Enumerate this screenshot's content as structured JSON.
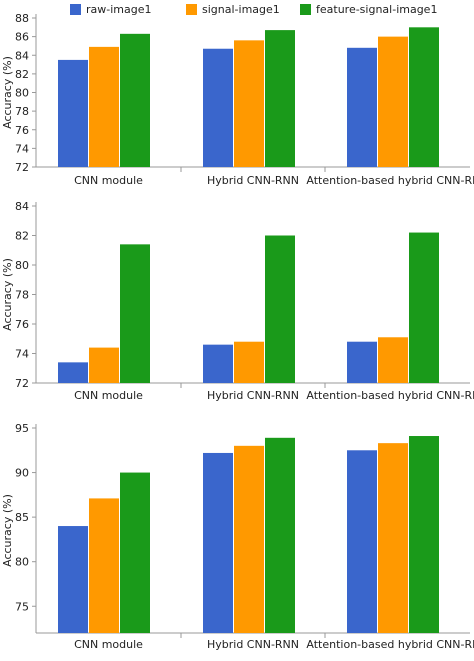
{
  "legend": {
    "placement": "top",
    "items": [
      {
        "label": "raw-image1",
        "color": "#3a66cc"
      },
      {
        "label": "signal-image1",
        "color": "#ff9900"
      },
      {
        "label": "feature-signal-image1",
        "color": "#1a9a1a"
      }
    ]
  },
  "chart_data": [
    {
      "type": "bar",
      "categories": [
        "CNN module",
        "Hybrid CNN-RNN",
        "Attention-based hybrid CNN-RNN"
      ],
      "series": [
        {
          "name": "raw-image1",
          "values": [
            83.5,
            84.7,
            84.8
          ]
        },
        {
          "name": "signal-image1",
          "values": [
            84.9,
            85.6,
            86.0
          ]
        },
        {
          "name": "feature-signal-image1",
          "values": [
            86.3,
            86.7,
            87.0
          ]
        }
      ],
      "ylabel": "Accuracy (%)",
      "ylim": [
        72,
        88
      ],
      "yticks": [
        72,
        74,
        76,
        78,
        80,
        82,
        84,
        86,
        88
      ],
      "grid": false
    },
    {
      "type": "bar",
      "categories": [
        "CNN module",
        "Hybrid CNN-RNN",
        "Attention-based hybrid CNN-RNN"
      ],
      "series": [
        {
          "name": "raw-image1",
          "values": [
            73.4,
            74.6,
            74.8
          ]
        },
        {
          "name": "signal-image1",
          "values": [
            74.4,
            74.8,
            75.1
          ]
        },
        {
          "name": "feature-signal-image1",
          "values": [
            81.4,
            82.0,
            82.2
          ]
        }
      ],
      "ylabel": "Accuracy (%)",
      "ylim": [
        72,
        84
      ],
      "yticks": [
        72,
        74,
        76,
        78,
        80,
        82,
        84
      ],
      "grid": false
    },
    {
      "type": "bar",
      "categories": [
        "CNN module",
        "Hybrid CNN-RNN",
        "Attention-based hybrid CNN-RNN"
      ],
      "series": [
        {
          "name": "raw-image1",
          "values": [
            84.0,
            92.2,
            92.5
          ]
        },
        {
          "name": "signal-image1",
          "values": [
            87.1,
            93.0,
            93.3
          ]
        },
        {
          "name": "feature-signal-image1",
          "values": [
            90.0,
            93.9,
            94.1
          ]
        }
      ],
      "ylabel": "Accuracy (%)",
      "ylim": [
        72,
        95
      ],
      "yticks": [
        75,
        80,
        85,
        90,
        95
      ],
      "grid": false
    }
  ]
}
